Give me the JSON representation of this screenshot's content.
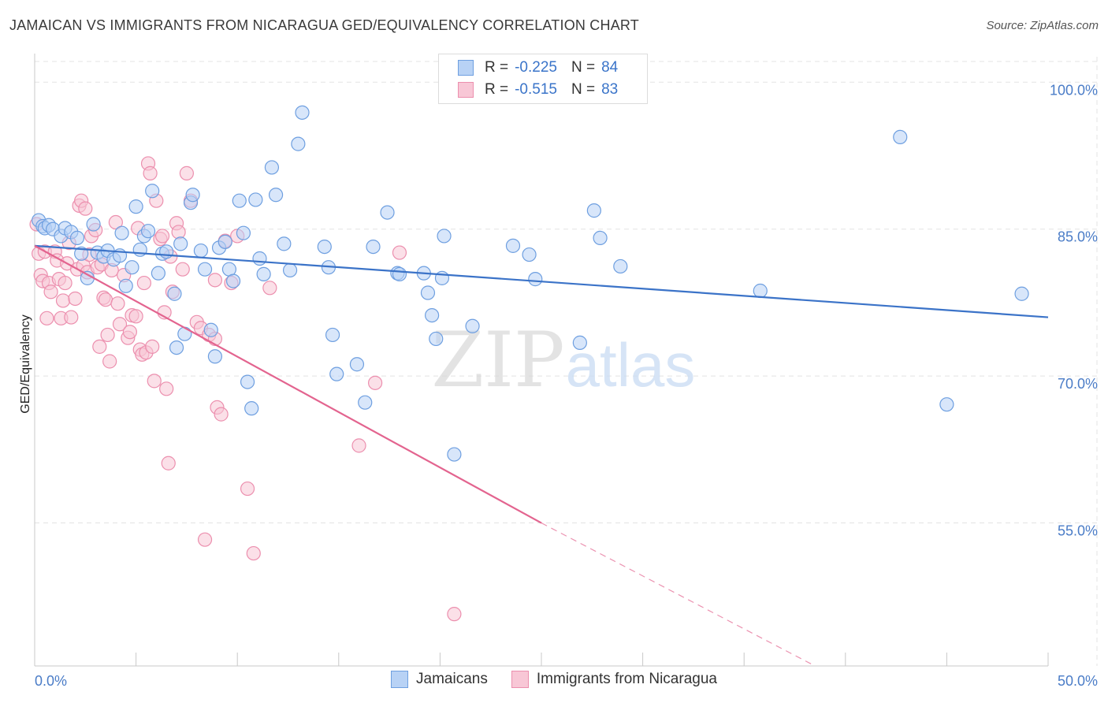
{
  "title": "JAMAICAN VS IMMIGRANTS FROM NICARAGUA GED/EQUIVALENCY CORRELATION CHART",
  "source": "Source: ZipAtlas.com",
  "watermark": {
    "zip": "ZIP",
    "atlas": "atlas"
  },
  "legend": {
    "rows": [
      {
        "r_label": "R =",
        "r_value": "-0.225",
        "n_label": "N =",
        "n_value": "84"
      },
      {
        "r_label": "R =",
        "r_value": "-0.515",
        "n_label": "N =",
        "n_value": "83"
      }
    ]
  },
  "bottom_legend": [
    "Jamaicans",
    "Immigrants from Nicaragua"
  ],
  "colors": {
    "blue_fill": "#b8d2f5",
    "blue_stroke": "#6e9fe0",
    "blue_line": "#3b73c8",
    "pink_fill": "#f8c7d6",
    "pink_stroke": "#ec8fae",
    "pink_line": "#e3648f",
    "grid": "#e3e3e3",
    "tick_text": "#4a7cc7"
  },
  "chart_data": {
    "type": "scatter",
    "title": "JAMAICAN VS IMMIGRANTS FROM NICARAGUA GED/EQUIVALENCY CORRELATION CHART",
    "xlabel": "",
    "ylabel": "GED/Equivalency",
    "xlim": [
      0,
      50
    ],
    "ylim": [
      40.4,
      102.6
    ],
    "x_tick_labels": [
      "0.0%",
      "50.0%"
    ],
    "y_ticks": [
      55,
      70,
      85,
      100
    ],
    "y_tick_labels": [
      "55.0%",
      "70.0%",
      "85.0%",
      "100.0%"
    ],
    "grid": true,
    "legend_position": "top-center",
    "series": [
      {
        "name": "Jamaicans",
        "trend": {
          "x": [
            0,
            50
          ],
          "y": [
            83.3,
            76.0
          ]
        },
        "points": [
          [
            0.2,
            85.9
          ],
          [
            0.4,
            85.3
          ],
          [
            0.5,
            85.1
          ],
          [
            0.7,
            85.4
          ],
          [
            0.9,
            85.0
          ],
          [
            1.3,
            84.3
          ],
          [
            1.5,
            85.1
          ],
          [
            1.8,
            84.7
          ],
          [
            2.1,
            84.1
          ],
          [
            2.3,
            82.5
          ],
          [
            2.6,
            80.0
          ],
          [
            2.9,
            85.5
          ],
          [
            3.1,
            82.6
          ],
          [
            3.4,
            82.2
          ],
          [
            3.6,
            82.8
          ],
          [
            3.9,
            81.9
          ],
          [
            4.2,
            82.3
          ],
          [
            4.3,
            84.6
          ],
          [
            4.5,
            79.2
          ],
          [
            4.8,
            81.1
          ],
          [
            5.0,
            87.3
          ],
          [
            5.2,
            82.9
          ],
          [
            5.4,
            84.3
          ],
          [
            5.6,
            84.8
          ],
          [
            5.8,
            88.9
          ],
          [
            6.1,
            80.5
          ],
          [
            6.3,
            82.5
          ],
          [
            6.5,
            82.7
          ],
          [
            6.9,
            78.4
          ],
          [
            7.0,
            72.9
          ],
          [
            7.2,
            83.5
          ],
          [
            7.4,
            74.3
          ],
          [
            7.7,
            87.7
          ],
          [
            7.8,
            88.5
          ],
          [
            8.2,
            82.8
          ],
          [
            8.4,
            80.9
          ],
          [
            8.7,
            74.7
          ],
          [
            8.9,
            72.0
          ],
          [
            9.1,
            83.1
          ],
          [
            9.4,
            83.7
          ],
          [
            9.6,
            80.9
          ],
          [
            9.8,
            79.7
          ],
          [
            10.1,
            87.9
          ],
          [
            10.3,
            84.6
          ],
          [
            10.5,
            69.4
          ],
          [
            10.7,
            66.7
          ],
          [
            10.9,
            88.0
          ],
          [
            11.1,
            82.0
          ],
          [
            11.3,
            80.4
          ],
          [
            11.7,
            91.3
          ],
          [
            11.9,
            88.5
          ],
          [
            12.3,
            83.5
          ],
          [
            12.6,
            80.8
          ],
          [
            13.0,
            93.7
          ],
          [
            13.2,
            96.9
          ],
          [
            14.3,
            83.2
          ],
          [
            14.5,
            81.1
          ],
          [
            14.7,
            74.2
          ],
          [
            14.9,
            70.2
          ],
          [
            15.9,
            71.2
          ],
          [
            16.3,
            67.3
          ],
          [
            16.7,
            83.2
          ],
          [
            17.4,
            86.7
          ],
          [
            17.9,
            80.5
          ],
          [
            18.0,
            80.4
          ],
          [
            19.2,
            80.5
          ],
          [
            19.4,
            78.5
          ],
          [
            19.6,
            76.2
          ],
          [
            19.8,
            73.8
          ],
          [
            20.1,
            80.0
          ],
          [
            20.2,
            84.3
          ],
          [
            20.7,
            62.0
          ],
          [
            21.6,
            75.1
          ],
          [
            23.6,
            83.3
          ],
          [
            24.4,
            82.4
          ],
          [
            24.7,
            79.9
          ],
          [
            26.9,
            73.4
          ],
          [
            27.6,
            86.9
          ],
          [
            27.9,
            84.1
          ],
          [
            28.9,
            81.2
          ],
          [
            35.8,
            78.7
          ],
          [
            42.7,
            94.4
          ],
          [
            45.0,
            67.1
          ],
          [
            48.7,
            78.4
          ]
        ]
      },
      {
        "name": "Immigrants from Nicaragua",
        "trend": {
          "x": [
            0,
            25.0
          ],
          "y": [
            83.3,
            55.0
          ]
        },
        "trend_dashed": {
          "x": [
            25.0,
            38.5
          ],
          "y": [
            55.0,
            40.4
          ]
        },
        "points": [
          [
            0.1,
            85.5
          ],
          [
            0.2,
            82.5
          ],
          [
            0.3,
            80.3
          ],
          [
            0.4,
            79.7
          ],
          [
            0.5,
            82.7
          ],
          [
            0.6,
            75.9
          ],
          [
            0.7,
            79.5
          ],
          [
            0.8,
            78.6
          ],
          [
            1.0,
            82.7
          ],
          [
            1.1,
            81.8
          ],
          [
            1.2,
            79.9
          ],
          [
            1.3,
            75.9
          ],
          [
            1.4,
            77.7
          ],
          [
            1.5,
            79.5
          ],
          [
            1.6,
            81.5
          ],
          [
            1.7,
            83.6
          ],
          [
            1.8,
            76.0
          ],
          [
            2.0,
            77.9
          ],
          [
            2.1,
            80.9
          ],
          [
            2.2,
            87.4
          ],
          [
            2.3,
            87.9
          ],
          [
            2.4,
            81.3
          ],
          [
            2.5,
            87.1
          ],
          [
            2.6,
            80.6
          ],
          [
            2.7,
            82.4
          ],
          [
            2.8,
            84.3
          ],
          [
            3.0,
            84.9
          ],
          [
            3.1,
            81.1
          ],
          [
            3.2,
            73.0
          ],
          [
            3.3,
            81.4
          ],
          [
            3.4,
            78.0
          ],
          [
            3.5,
            77.8
          ],
          [
            3.6,
            74.2
          ],
          [
            3.7,
            71.5
          ],
          [
            3.8,
            80.8
          ],
          [
            4.0,
            85.7
          ],
          [
            4.1,
            77.4
          ],
          [
            4.2,
            75.3
          ],
          [
            4.4,
            80.3
          ],
          [
            4.6,
            73.9
          ],
          [
            4.7,
            74.5
          ],
          [
            4.8,
            76.2
          ],
          [
            5.0,
            76.1
          ],
          [
            5.1,
            85.1
          ],
          [
            5.2,
            72.7
          ],
          [
            5.3,
            72.2
          ],
          [
            5.4,
            79.5
          ],
          [
            5.5,
            72.4
          ],
          [
            5.6,
            91.7
          ],
          [
            5.7,
            90.7
          ],
          [
            5.8,
            73.0
          ],
          [
            5.9,
            69.5
          ],
          [
            6.0,
            87.9
          ],
          [
            6.2,
            84.0
          ],
          [
            6.3,
            84.3
          ],
          [
            6.4,
            76.5
          ],
          [
            6.5,
            68.7
          ],
          [
            6.6,
            61.1
          ],
          [
            6.7,
            82.2
          ],
          [
            6.8,
            78.6
          ],
          [
            7.0,
            85.6
          ],
          [
            7.1,
            84.7
          ],
          [
            7.3,
            80.9
          ],
          [
            7.5,
            90.7
          ],
          [
            7.7,
            87.9
          ],
          [
            8.0,
            75.5
          ],
          [
            8.2,
            74.9
          ],
          [
            8.4,
            53.3
          ],
          [
            8.6,
            74.2
          ],
          [
            8.9,
            79.8
          ],
          [
            8.9,
            73.8
          ],
          [
            9.0,
            66.8
          ],
          [
            9.2,
            66.1
          ],
          [
            9.4,
            83.8
          ],
          [
            9.7,
            79.5
          ],
          [
            10.0,
            84.3
          ],
          [
            10.5,
            58.5
          ],
          [
            10.8,
            51.9
          ],
          [
            11.6,
            79.0
          ],
          [
            16.0,
            62.9
          ],
          [
            16.8,
            69.3
          ],
          [
            18.0,
            82.6
          ],
          [
            20.7,
            45.7
          ]
        ]
      }
    ]
  }
}
